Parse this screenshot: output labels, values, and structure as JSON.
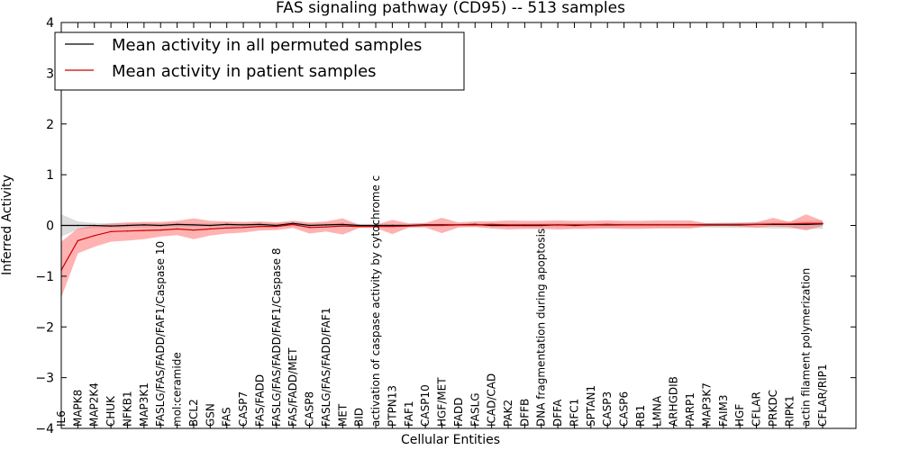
{
  "chart_data": {
    "type": "line",
    "title": "FAS signaling pathway (CD95) -- 513 samples",
    "xlabel": "Cellular Entities",
    "ylabel": "Inferred Activity",
    "ylim": [
      -4,
      4
    ],
    "yticks": [
      -4,
      -3,
      -2,
      -1,
      0,
      1,
      2,
      3,
      4
    ],
    "ytick_labels": [
      "−4",
      "−3",
      "−2",
      "−1",
      "0",
      "1",
      "2",
      "3",
      "4"
    ],
    "categories": [
      "IL6",
      "MAPK8",
      "MAP2K4",
      "CHUK",
      "NFKB1",
      "MAP3K1",
      "FASLG/FAS/FADD/FAF1/Caspase 10",
      "mol:ceramide",
      "BCL2",
      "GSN",
      "FAS",
      "CASP7",
      "FAS/FADD",
      "FASLG/FAS/FADD/FAF1/Caspase 8",
      "FAS/FADD/MET",
      "CASP8",
      "FASLG/FAS/FADD/FAF1",
      "MET",
      "BID",
      "activation of caspase activity by cytochrome c",
      "PTPN13",
      "FAF1",
      "CASP10",
      "HGF/MET",
      "FADD",
      "FASLG",
      "ICAD/CAD",
      "PAK2",
      "DFFB",
      "DNA fragmentation during apoptosis",
      "DFFA",
      "RFC1",
      "SPTAN1",
      "CASP3",
      "CASP6",
      "RB1",
      "LMNA",
      "ARHGDIB",
      "PARP1",
      "MAP3K7",
      "FAIM3",
      "HGF",
      "CFLAR",
      "PRKDC",
      "RIPK1",
      "actin filament polymerization",
      "CFLAR/RIP1"
    ],
    "series": [
      {
        "name": "Mean activity in all permuted samples",
        "color": "#000000",
        "band_color": "#bbbbbb",
        "values": [
          0.0,
          0.0,
          0.0,
          -0.01,
          0.0,
          0.01,
          0.0,
          0.02,
          0.01,
          0.0,
          0.02,
          0.01,
          0.02,
          0.0,
          0.04,
          0.0,
          0.01,
          0.02,
          0.0,
          0.0,
          0.0,
          0.0,
          0.01,
          0.01,
          0.01,
          0.02,
          0.0,
          0.0,
          0.0,
          0.0,
          0.01,
          0.0,
          0.01,
          0.01,
          0.01,
          0.01,
          0.01,
          0.01,
          0.01,
          0.01,
          0.01,
          0.01,
          0.02,
          0.02,
          0.02,
          0.02,
          0.03
        ],
        "lower": [
          -0.22,
          -0.08,
          -0.05,
          -0.05,
          -0.04,
          -0.04,
          -0.03,
          -0.03,
          -0.03,
          -0.03,
          -0.03,
          -0.03,
          -0.03,
          -0.03,
          -0.02,
          -0.03,
          -0.03,
          -0.02,
          -0.03,
          -0.03,
          -0.03,
          -0.03,
          -0.02,
          -0.02,
          -0.02,
          -0.02,
          -0.03,
          -0.03,
          -0.04,
          -0.04,
          -0.04,
          -0.04,
          -0.04,
          -0.04,
          -0.04,
          -0.04,
          -0.04,
          -0.04,
          -0.04,
          -0.04,
          -0.05,
          -0.05,
          -0.05,
          -0.06,
          -0.06,
          -0.07,
          -0.07
        ],
        "upper": [
          0.22,
          0.08,
          0.05,
          0.04,
          0.04,
          0.05,
          0.04,
          0.06,
          0.05,
          0.04,
          0.06,
          0.05,
          0.06,
          0.04,
          0.08,
          0.04,
          0.05,
          0.06,
          0.03,
          0.03,
          0.03,
          0.03,
          0.04,
          0.04,
          0.04,
          0.05,
          0.04,
          0.04,
          0.04,
          0.04,
          0.05,
          0.04,
          0.05,
          0.05,
          0.05,
          0.05,
          0.05,
          0.05,
          0.05,
          0.05,
          0.06,
          0.06,
          0.07,
          0.07,
          0.08,
          0.09,
          0.1
        ]
      },
      {
        "name": "Mean activity in patient samples",
        "color": "#cc0000",
        "band_color": "#ff6666",
        "values": [
          -0.88,
          -0.3,
          -0.2,
          -0.12,
          -0.11,
          -0.1,
          -0.09,
          -0.07,
          -0.09,
          -0.07,
          -0.05,
          -0.04,
          -0.02,
          -0.02,
          0.02,
          -0.04,
          -0.03,
          -0.01,
          -0.02,
          -0.02,
          -0.02,
          -0.01,
          0.0,
          0.0,
          0.01,
          0.01,
          0.02,
          0.01,
          0.01,
          0.01,
          0.01,
          0.01,
          0.01,
          0.02,
          0.01,
          0.01,
          0.01,
          0.01,
          0.01,
          0.02,
          0.02,
          0.02,
          0.02,
          0.03,
          0.03,
          0.04,
          0.04
        ],
        "lower": [
          -1.42,
          -0.55,
          -0.42,
          -0.32,
          -0.3,
          -0.27,
          -0.22,
          -0.19,
          -0.27,
          -0.2,
          -0.16,
          -0.14,
          -0.1,
          -0.09,
          -0.05,
          -0.16,
          -0.12,
          -0.18,
          -0.05,
          -0.05,
          -0.17,
          -0.04,
          -0.04,
          -0.15,
          -0.04,
          -0.03,
          -0.06,
          -0.08,
          -0.07,
          -0.07,
          -0.08,
          -0.07,
          -0.07,
          -0.06,
          -0.07,
          -0.07,
          -0.06,
          -0.06,
          -0.06,
          -0.02,
          -0.01,
          -0.02,
          -0.04,
          -0.02,
          -0.03,
          -0.1,
          -0.01
        ],
        "upper": [
          -0.32,
          -0.06,
          0.0,
          0.04,
          0.06,
          0.07,
          0.07,
          0.09,
          0.14,
          0.09,
          0.08,
          0.07,
          0.08,
          0.06,
          0.09,
          0.06,
          0.08,
          0.14,
          0.01,
          0.01,
          0.11,
          0.04,
          0.05,
          0.15,
          0.06,
          0.08,
          0.08,
          0.1,
          0.09,
          0.09,
          0.1,
          0.09,
          0.09,
          0.1,
          0.09,
          0.09,
          0.1,
          0.1,
          0.1,
          0.04,
          0.04,
          0.05,
          0.06,
          0.15,
          0.07,
          0.22,
          0.09
        ]
      }
    ],
    "legend": {
      "location": "top-left"
    },
    "grid": false
  }
}
